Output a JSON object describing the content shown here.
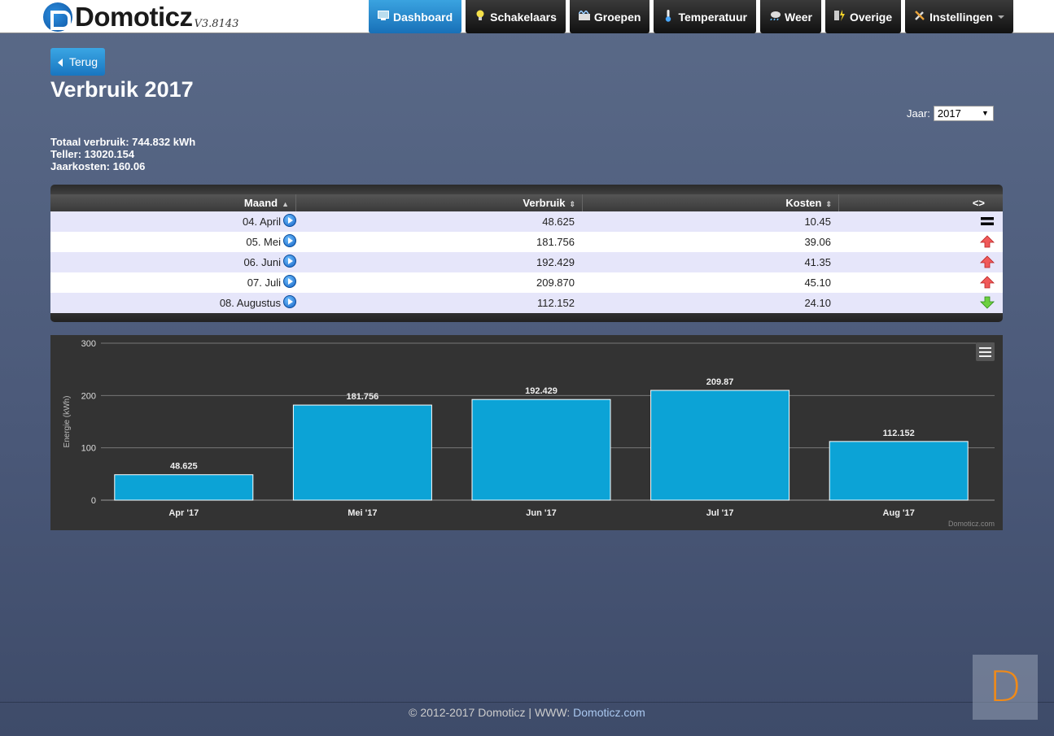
{
  "app": {
    "name": "Domoticz",
    "version": "V3.8143"
  },
  "nav": {
    "items": [
      {
        "label": "Dashboard",
        "icon": "dashboard-icon",
        "active": true
      },
      {
        "label": "Schakelaars",
        "icon": "lightbulb-icon",
        "active": false
      },
      {
        "label": "Groepen",
        "icon": "scenes-icon",
        "active": false
      },
      {
        "label": "Temperatuur",
        "icon": "thermometer-icon",
        "active": false
      },
      {
        "label": "Weer",
        "icon": "weather-icon",
        "active": false
      },
      {
        "label": "Overige",
        "icon": "utility-icon",
        "active": false
      },
      {
        "label": "Instellingen",
        "icon": "tools-icon",
        "active": false,
        "dropdown": true
      }
    ]
  },
  "page": {
    "back_label": "Terug",
    "title": "Verbruik 2017",
    "year_label": "Jaar:",
    "year_value": "2017"
  },
  "summary": {
    "total": "Totaal verbruik: 744.832 kWh",
    "counter": "Teller: 13020.154",
    "cost": "Jaarkosten: 160.06"
  },
  "table": {
    "headers": {
      "month": "Maand",
      "usage": "Verbruik",
      "cost": "Kosten",
      "trend": "<>"
    },
    "rows": [
      {
        "month": "04. April",
        "usage": "48.625",
        "cost": "10.45",
        "trend": "equal"
      },
      {
        "month": "05. Mei",
        "usage": "181.756",
        "cost": "39.06",
        "trend": "up"
      },
      {
        "month": "06. Juni",
        "usage": "192.429",
        "cost": "41.35",
        "trend": "up"
      },
      {
        "month": "07. Juli",
        "usage": "209.870",
        "cost": "45.10",
        "trend": "up"
      },
      {
        "month": "08. Augustus",
        "usage": "112.152",
        "cost": "24.10",
        "trend": "down"
      }
    ]
  },
  "chart_data": {
    "type": "bar",
    "categories": [
      "Apr '17",
      "Mei '17",
      "Jun '17",
      "Jul '17",
      "Aug '17"
    ],
    "values": [
      48.625,
      181.756,
      192.429,
      209.87,
      112.152
    ],
    "value_labels": [
      "48.625",
      "181.756",
      "192.429",
      "209.87",
      "112.152"
    ],
    "title": "",
    "xlabel": "",
    "ylabel": "Energie (kWh)",
    "ylim": [
      0,
      300
    ],
    "yticks": [
      0,
      100,
      200,
      300
    ],
    "grid": true,
    "bar_color": "#0ca3d6",
    "credit": "Domoticz.com"
  },
  "footer": {
    "text": "© 2012-2017 Domoticz | WWW: ",
    "link": "Domoticz.com"
  },
  "colors": {
    "accent": "#1a86cc",
    "bar": "#0ca3d6",
    "corner_logo": "#f08a18"
  },
  "corner_logo": {
    "letter": "D"
  }
}
